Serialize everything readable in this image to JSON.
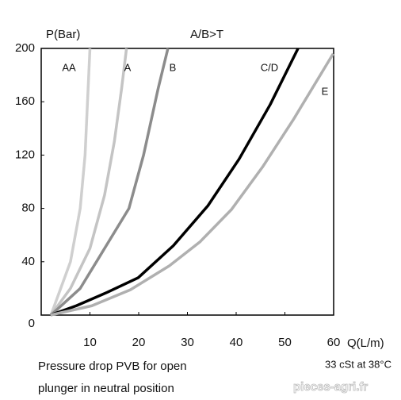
{
  "chart_data": {
    "type": "line",
    "y_label": "P(Bar)",
    "title": "A/B>T",
    "x_label": "Q(L/m)",
    "caption_lines": [
      "Pressure drop PVB for open",
      "plunger in neutral position"
    ],
    "note": "33 cSt at 38°C",
    "watermark": "pieces-agri.fr",
    "xlim": [
      0,
      60
    ],
    "ylim": [
      0,
      200
    ],
    "xticks": [
      10,
      20,
      30,
      40,
      50,
      60
    ],
    "yticks": [
      0,
      40,
      80,
      120,
      160,
      200
    ],
    "grid": false,
    "series": [
      {
        "name": "AA",
        "color": "#cfcfcf",
        "x": [
          2,
          6,
          8,
          9,
          9.5,
          10
        ],
        "values": [
          0,
          40,
          80,
          120,
          160,
          200
        ]
      },
      {
        "name": "A",
        "color": "#c4c4c4",
        "x": [
          2,
          6,
          10,
          13,
          15,
          16.5,
          17.5
        ],
        "values": [
          0,
          20,
          50,
          90,
          130,
          170,
          200
        ]
      },
      {
        "name": "B",
        "color": "#8c8c8c",
        "x": [
          2,
          8,
          13,
          18,
          21,
          24,
          26
        ],
        "values": [
          0,
          20,
          50,
          80,
          120,
          170,
          200
        ]
      },
      {
        "name": "C/D",
        "color": "#000000",
        "x": [
          1.9,
          7.2,
          13.5,
          19.9,
          27.1,
          34.2,
          40.6,
          47,
          52.7
        ],
        "values": [
          0,
          7,
          17,
          28,
          52,
          82,
          117,
          158,
          200
        ]
      },
      {
        "name": "E",
        "color": "#b0b0b0",
        "x": [
          1.9,
          10.4,
          18.3,
          26.3,
          32.6,
          39,
          45.4,
          51.8,
          59.9
        ],
        "values": [
          0,
          7,
          19,
          37,
          55,
          79,
          111,
          147,
          196
        ]
      }
    ]
  }
}
